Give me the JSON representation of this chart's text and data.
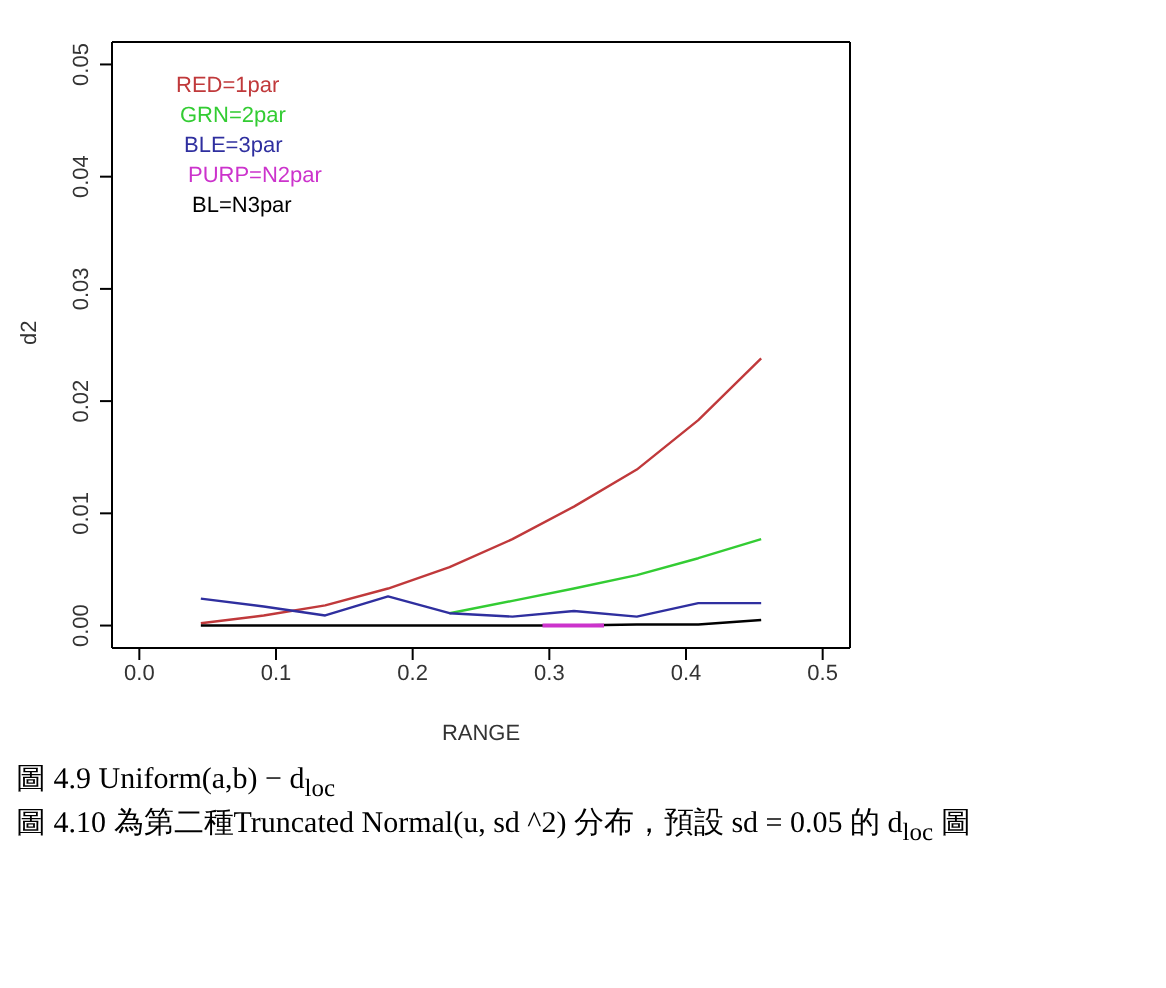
{
  "chart_data": {
    "type": "line",
    "xlabel": "RANGE",
    "ylabel": "d2",
    "x": [
      0.045,
      0.091,
      0.136,
      0.182,
      0.227,
      0.273,
      0.318,
      0.364,
      0.409,
      0.455
    ],
    "series": [
      {
        "name": "RED=1par",
        "color": "#c0393b",
        "values": [
          0.0002,
          0.0009,
          0.0018,
          0.0033,
          0.0052,
          0.0077,
          0.0106,
          0.0139,
          0.0183,
          0.0238
        ]
      },
      {
        "name": "GRN=2par",
        "color": "#33cc33",
        "values": [
          null,
          null,
          null,
          null,
          0.0011,
          0.0022,
          0.0033,
          0.0045,
          0.006,
          0.0077
        ]
      },
      {
        "name": "BLE=3par",
        "color": "#2f2f9f",
        "values": [
          0.0024,
          0.0017,
          0.0009,
          0.0026,
          0.0011,
          0.0008,
          0.0013,
          0.0008,
          0.002,
          0.002
        ]
      },
      {
        "name": "PURP=N2par",
        "color": "#cc33cc",
        "x": [
          0.295,
          0.34
        ],
        "values": [
          0,
          0
        ]
      },
      {
        "name": "BL=N3par",
        "color": "#000000",
        "values": [
          0,
          0,
          0,
          0,
          0,
          0,
          0,
          0.0001,
          0.0001,
          0.0005
        ]
      }
    ],
    "xlim": [
      -0.02,
      0.52
    ],
    "ylim": [
      -0.002,
      0.052
    ],
    "xticks": [
      {
        "value": 0,
        "label": "0.0"
      },
      {
        "value": 0.1,
        "label": "0.1"
      },
      {
        "value": 0.2,
        "label": "0.2"
      },
      {
        "value": 0.3,
        "label": "0.3"
      },
      {
        "value": 0.4,
        "label": "0.4"
      },
      {
        "value": 0.5,
        "label": "0.5"
      }
    ],
    "yticks": [
      {
        "value": 0,
        "label": "0.00"
      },
      {
        "value": 0.01,
        "label": "0.01"
      },
      {
        "value": 0.02,
        "label": "0.02"
      },
      {
        "value": 0.03,
        "label": "0.03"
      },
      {
        "value": 0.04,
        "label": "0.04"
      },
      {
        "value": 0.05,
        "label": "0.05"
      }
    ],
    "legend": "top left",
    "grid": false,
    "marker": "none",
    "line_style": "solid",
    "annotations": [
      "圖 4.9 Uniform(a,b) − d$_{loc}$",
      "圖 4.10 為第二種Truncated Normal(u, sd ^2) 分布，預設 sd = 0.05 的 d$_{loc}$ 圖"
    ]
  }
}
